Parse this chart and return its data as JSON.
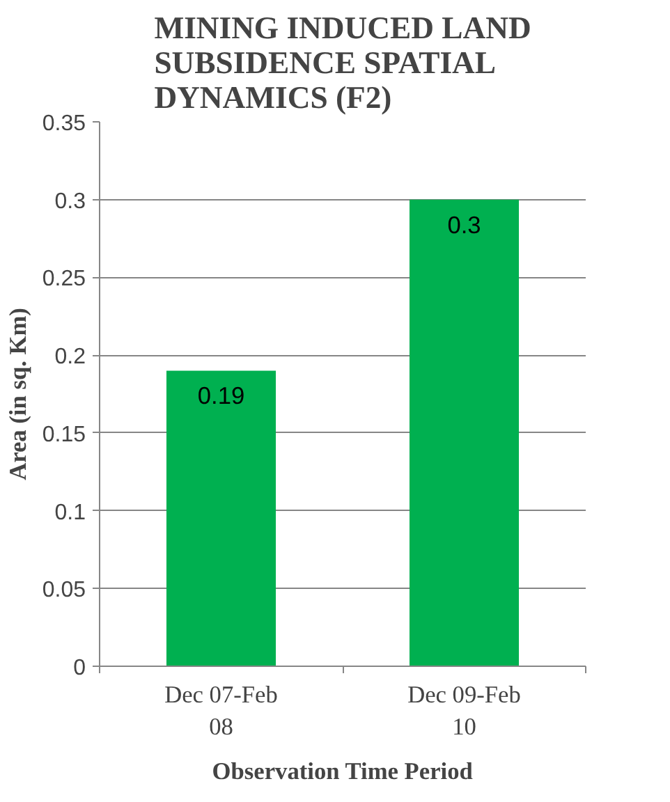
{
  "chart_data": {
    "type": "bar",
    "title": "MINING INDUCED LAND SUBSIDENCE SPATIAL DYNAMICS (F2)",
    "xlabel": "Observation Time Period",
    "ylabel": "Area (in sq. Km)",
    "categories": [
      "Dec 07-Feb 08",
      "Dec 09-Feb 10"
    ],
    "values": [
      0.19,
      0.3
    ],
    "color": "#00b050",
    "ylim": [
      0,
      0.35
    ],
    "yticks": [
      "0",
      "0.05",
      "0.1",
      "0.15",
      "0.2",
      "0.25",
      "0.3",
      "0.35"
    ],
    "grid": "y",
    "data_labels": true
  }
}
